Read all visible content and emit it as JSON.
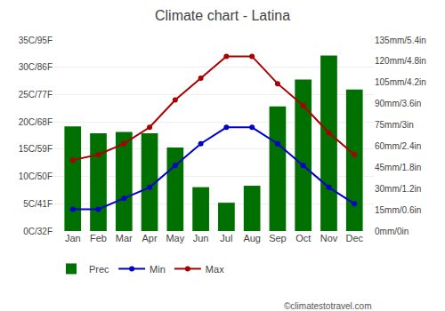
{
  "chart_data": {
    "type": "bar",
    "title": "Climate chart - Latina",
    "categories": [
      "Jan",
      "Feb",
      "Mar",
      "Apr",
      "May",
      "Jun",
      "Jul",
      "Aug",
      "Sep",
      "Oct",
      "Nov",
      "Dec"
    ],
    "series": [
      {
        "name": "Prec",
        "type": "bar",
        "axis": "y2",
        "color": "#007000",
        "values": [
          74,
          69,
          70,
          69,
          59,
          31,
          20,
          32,
          88,
          107,
          124,
          100
        ]
      },
      {
        "name": "Min",
        "type": "line",
        "color": "#0000cc",
        "marker": "circle",
        "values": [
          4,
          4,
          6,
          8,
          12,
          16,
          19,
          19,
          16,
          12,
          8,
          5
        ]
      },
      {
        "name": "Max",
        "type": "line",
        "color": "#aa0000",
        "marker": "circle",
        "values": [
          13,
          14,
          16,
          19,
          24,
          28,
          32,
          32,
          27,
          23,
          18,
          14
        ]
      }
    ],
    "ylim": [
      0,
      35
    ],
    "yticks": [
      {
        "value": 0,
        "label": "0C/32F"
      },
      {
        "value": 5,
        "label": "5C/41F"
      },
      {
        "value": 10,
        "label": "10C/50F"
      },
      {
        "value": 15,
        "label": "15C/59F"
      },
      {
        "value": 20,
        "label": "20C/68F"
      },
      {
        "value": 25,
        "label": "25C/77F"
      },
      {
        "value": 30,
        "label": "30C/86F"
      },
      {
        "value": 35,
        "label": "35C/95F"
      }
    ],
    "y2lim": [
      0,
      135
    ],
    "y2ticks": [
      {
        "value": 0,
        "label": "0mm/0in"
      },
      {
        "value": 15,
        "label": "15mm/0.6in"
      },
      {
        "value": 30,
        "label": "30mm/1.2in"
      },
      {
        "value": 45,
        "label": "45mm/1.8in"
      },
      {
        "value": 60,
        "label": "60mm/2.4in"
      },
      {
        "value": 75,
        "label": "75mm/3in"
      },
      {
        "value": 90,
        "label": "90mm/3.6in"
      },
      {
        "value": 105,
        "label": "105mm/4.2in"
      },
      {
        "value": 120,
        "label": "120mm/4.8in"
      },
      {
        "value": 135,
        "label": "135mm/5.4in"
      }
    ],
    "grid": true,
    "legend": "bottom",
    "annotations": [
      "©climatestotravel.com"
    ]
  }
}
